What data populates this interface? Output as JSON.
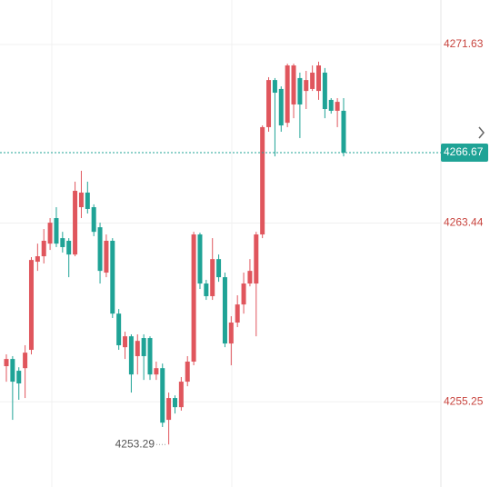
{
  "chart_data": {
    "type": "candlestick",
    "up_color": "#e0565d",
    "down_color": "#1fa396",
    "open": [
      4256.88,
      4257.21,
      4256.67,
      4256.79,
      4257.63,
      4261.67,
      4261.92,
      4262.5,
      4263.67,
      4262.75,
      4262.63,
      4262.0,
      4264.17,
      4264.84,
      4264.17,
      4263.25,
      4261.17,
      4262.63,
      4259.29,
      4257.75,
      4258.25,
      4257.34,
      4258.17,
      4258.17,
      4256.5,
      4256.79,
      4254.42,
      4255.42,
      4255.0,
      4256.17,
      4257.09,
      4262.92,
      4260.67,
      4260.09,
      4261.79,
      4260.96,
      4257.92,
      4258.88,
      4259.71,
      4260.67,
      4260.67,
      4262.92,
      4267.84,
      4270.0,
      4269.59,
      4268.04,
      4268.88,
      4270.09,
      4269.5,
      4269.59,
      4269.5,
      4270.34,
      4269.09,
      4268.59,
      4268.59
    ],
    "high": [
      4257.42,
      4257.34,
      4256.83,
      4257.84,
      4261.88,
      4262.5,
      4263.17,
      4263.67,
      4264.17,
      4263.04,
      4262.75,
      4265.34,
      4265.84,
      4265.34,
      4264.3,
      4263.46,
      4262.92,
      4262.75,
      4259.5,
      4258.46,
      4258.34,
      4258.34,
      4258.34,
      4258.25,
      4257.09,
      4257.0,
      4255.67,
      4255.54,
      4256.38,
      4257.34,
      4263.04,
      4263.0,
      4260.84,
      4262.75,
      4262.0,
      4261.17,
      4259.17,
      4260.13,
      4261.17,
      4261.79,
      4263.04,
      4267.92,
      4270.13,
      4270.09,
      4269.71,
      4270.75,
      4270.75,
      4270.34,
      4270.42,
      4270.67,
      4270.84,
      4270.55,
      4269.17,
      4269.17,
      4269.17
    ],
    "low": [
      4256.17,
      4254.42,
      4255.34,
      4255.42,
      4257.42,
      4261.25,
      4261.59,
      4262.21,
      4262.34,
      4262.09,
      4260.96,
      4261.92,
      4263.67,
      4263.88,
      4262.84,
      4260.67,
      4260.96,
      4259.09,
      4257.63,
      4257.21,
      4255.67,
      4256.5,
      4256.25,
      4256.25,
      4256.25,
      4254.09,
      4253.29,
      4254.71,
      4254.84,
      4255.96,
      4256.92,
      4260.42,
      4259.92,
      4259.92,
      4260.75,
      4257.75,
      4256.92,
      4258.67,
      4259.29,
      4260.54,
      4258.25,
      4262.75,
      4267.63,
      4266.5,
      4267.63,
      4267.84,
      4268.25,
      4267.34,
      4268.67,
      4269.5,
      4269.09,
      4268.25,
      4268.46,
      4267.84,
      4266.5
    ],
    "close": [
      4257.21,
      4256.17,
      4256.09,
      4257.5,
      4261.75,
      4261.92,
      4262.63,
      4263.46,
      4262.5,
      4262.34,
      4262.0,
      4264.92,
      4264.84,
      4264.09,
      4263.04,
      4261.25,
      4262.63,
      4259.29,
      4257.84,
      4258.25,
      4256.5,
      4258.04,
      4257.34,
      4256.5,
      4256.79,
      4254.29,
      4255.42,
      4255.0,
      4256.17,
      4257.09,
      4262.92,
      4260.67,
      4260.09,
      4261.79,
      4260.96,
      4257.92,
      4258.88,
      4259.71,
      4260.67,
      4261.25,
      4262.92,
      4267.84,
      4270.0,
      4269.42,
      4267.92,
      4270.67,
      4270.67,
      4268.88,
      4270.0,
      4270.34,
      4270.67,
      4268.67,
      4268.59,
      4269.0,
      4266.67
    ],
    "ylim": [
      4251.34,
      4273.67
    ],
    "yticks": [
      4255.25,
      4263.44,
      4271.63
    ],
    "grid": true,
    "current_price": 4266.67,
    "low_marker": 4253.29
  }
}
